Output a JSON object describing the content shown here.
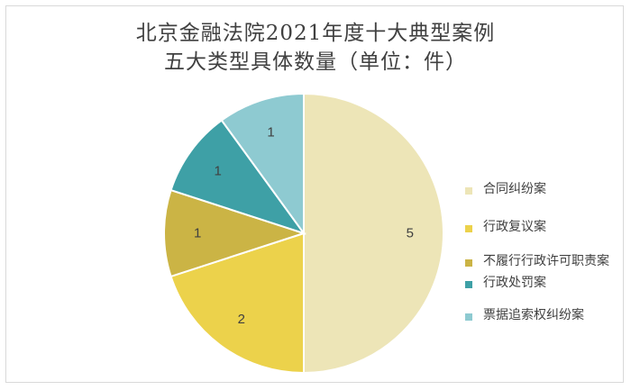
{
  "chart_data": {
    "type": "pie",
    "title": "北京金融法院2021年度十大典型案例",
    "subtitle": "五大类型具体数量（单位：件）",
    "legend_position": "right",
    "categories": [
      "合同纠纷案",
      "行政复议案",
      "不履行行政许可职责案",
      "行政处罚案",
      "票据追索权纠纷案"
    ],
    "values": [
      5,
      2,
      1,
      1,
      1
    ],
    "colors": [
      "#ede5b7",
      "#ecd24b",
      "#cbb445",
      "#3ea0a6",
      "#8ecad1"
    ]
  }
}
